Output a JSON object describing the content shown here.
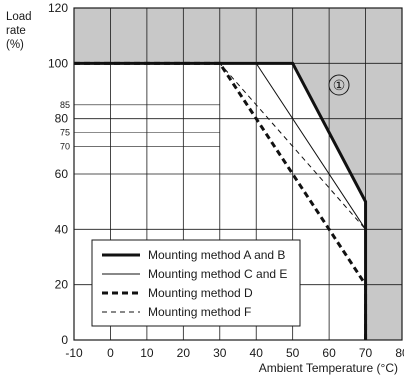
{
  "chart_data": {
    "type": "line",
    "xlabel": "Ambient Temperature (°C)",
    "ylabel_lines": [
      "Load",
      "rate",
      "(%)"
    ],
    "xlim": [
      -10,
      80
    ],
    "ylim": [
      0,
      120
    ],
    "x_ticks": [
      "-10",
      "0",
      "10",
      "20",
      "30",
      "40",
      "50",
      "60",
      "70",
      "80"
    ],
    "y_ticks_major": [
      "0",
      "20",
      "40",
      "60",
      "80",
      "100",
      "120"
    ],
    "y_ticks_minor": [
      "70",
      "75",
      "85"
    ],
    "x_tick_values": [
      -10,
      0,
      10,
      20,
      30,
      40,
      50,
      60,
      70,
      80
    ],
    "y_tick_values_major": [
      0,
      20,
      40,
      60,
      80,
      100,
      120
    ],
    "y_tick_values_minor": [
      70,
      75,
      85
    ],
    "grid": true,
    "legend_position": "bottom-left",
    "series": [
      {
        "name": "Mounting method A and B",
        "style": "thick-solid",
        "x": [
          -10,
          50,
          70,
          70
        ],
        "y": [
          100,
          100,
          50,
          0
        ]
      },
      {
        "name": "Mounting method C and E",
        "style": "thin-solid",
        "x": [
          -10,
          40,
          70,
          70
        ],
        "y": [
          100,
          100,
          40,
          0
        ]
      },
      {
        "name": "Mounting method D",
        "style": "thick-dashed",
        "x": [
          -10,
          30,
          70,
          70
        ],
        "y": [
          100,
          100,
          20,
          0
        ]
      },
      {
        "name": "Mounting method F",
        "style": "thin-dashed",
        "x": [
          -10,
          30,
          70
        ],
        "y": [
          100,
          100,
          40
        ]
      }
    ],
    "shaded_region_label": "①",
    "shaded_region_color": "#c8c8c8"
  }
}
